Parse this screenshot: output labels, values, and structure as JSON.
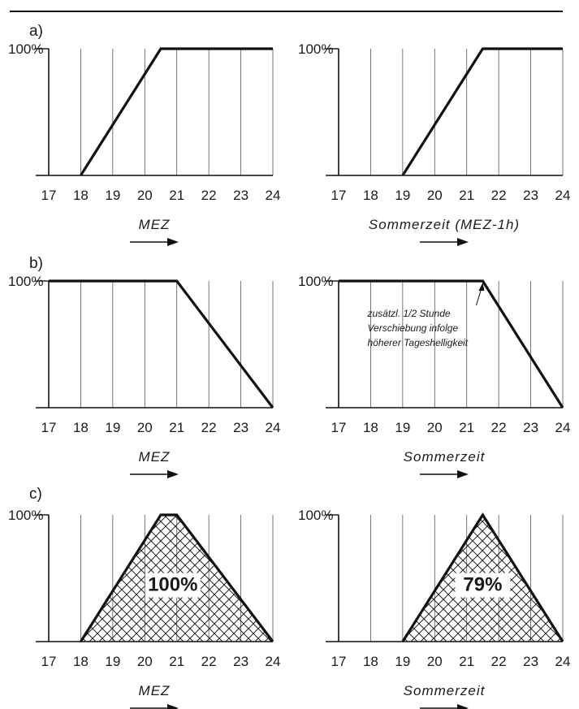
{
  "panel_labels": [
    "a)",
    "b)",
    "c)"
  ],
  "chart_data": [
    {
      "type": "line",
      "panel": "a)",
      "ylabel": "100%",
      "xlabel": "MEZ",
      "xlim": [
        17,
        24
      ],
      "x_ticks": [
        17,
        18,
        19,
        20,
        21,
        22,
        23,
        24
      ],
      "ylim": [
        0,
        100
      ],
      "points": [
        [
          18,
          0
        ],
        [
          20.5,
          100
        ],
        [
          24,
          100
        ]
      ],
      "fill": false
    },
    {
      "type": "line",
      "panel": "a)",
      "ylabel": "100%",
      "xlabel": "Sommerzeit (MEZ-1h)",
      "xlim": [
        17,
        24
      ],
      "x_ticks": [
        17,
        18,
        19,
        20,
        21,
        22,
        23,
        24
      ],
      "ylim": [
        0,
        100
      ],
      "points": [
        [
          19,
          0
        ],
        [
          21.5,
          100
        ],
        [
          24,
          100
        ]
      ],
      "fill": false
    },
    {
      "type": "line",
      "panel": "b)",
      "ylabel": "100%",
      "xlabel": "MEZ",
      "xlim": [
        17,
        24
      ],
      "x_ticks": [
        17,
        18,
        19,
        20,
        21,
        22,
        23,
        24
      ],
      "ylim": [
        0,
        100
      ],
      "points": [
        [
          17,
          100
        ],
        [
          21,
          100
        ],
        [
          24,
          0
        ]
      ],
      "fill": false
    },
    {
      "type": "line",
      "panel": "b)",
      "ylabel": "100%",
      "xlabel": "Sommerzeit",
      "xlim": [
        17,
        24
      ],
      "x_ticks": [
        17,
        18,
        19,
        20,
        21,
        22,
        23,
        24
      ],
      "ylim": [
        0,
        100
      ],
      "points": [
        [
          17,
          100
        ],
        [
          21.5,
          100
        ],
        [
          24,
          0
        ]
      ],
      "fill": false,
      "annotation": {
        "lines": [
          "zusätzl. 1/2 Stunde",
          "Verschiebung infolge",
          "höherer Tageshelligkeit"
        ],
        "points_to": [
          21.5,
          100
        ]
      }
    },
    {
      "type": "area",
      "panel": "c)",
      "ylabel": "100%",
      "xlabel": "MEZ",
      "xlim": [
        17,
        24
      ],
      "x_ticks": [
        17,
        18,
        19,
        20,
        21,
        22,
        23,
        24
      ],
      "ylim": [
        0,
        100
      ],
      "points": [
        [
          18,
          0
        ],
        [
          20.5,
          100
        ],
        [
          21,
          100
        ],
        [
          24,
          0
        ]
      ],
      "fill": true,
      "area_label": "100%"
    },
    {
      "type": "area",
      "panel": "c)",
      "ylabel": "100%",
      "xlabel": "Sommerzeit",
      "xlim": [
        17,
        24
      ],
      "x_ticks": [
        17,
        18,
        19,
        20,
        21,
        22,
        23,
        24
      ],
      "ylim": [
        0,
        100
      ],
      "points": [
        [
          19,
          0
        ],
        [
          21.5,
          100
        ],
        [
          24,
          0
        ]
      ],
      "fill": true,
      "area_label": "79%"
    }
  ]
}
